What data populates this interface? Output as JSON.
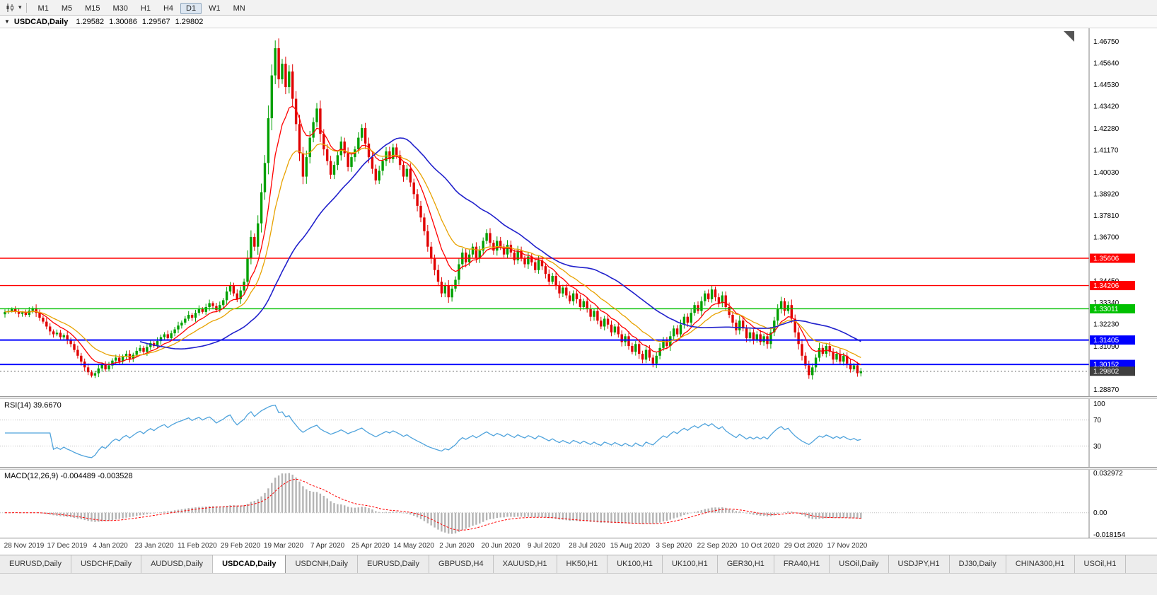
{
  "toolbar": {
    "timeframes": [
      "M1",
      "M5",
      "M15",
      "M30",
      "H1",
      "H4",
      "D1",
      "W1",
      "MN"
    ],
    "active_timeframe": "D1"
  },
  "chart_header": {
    "symbol": "USDCAD,Daily",
    "open": "1.29582",
    "high": "1.30086",
    "low": "1.29567",
    "close": "1.29802"
  },
  "chart_data": {
    "type": "candlestick",
    "title": "USDCAD,Daily",
    "quote": {
      "open": 1.29582,
      "high": 1.30086,
      "low": 1.29567,
      "close": 1.29802
    },
    "ylim": [
      1.2852,
      1.4742
    ],
    "y_ticks": [
      "1.46750",
      "1.45640",
      "1.44530",
      "1.43420",
      "1.42280",
      "1.41170",
      "1.40030",
      "1.38920",
      "1.37810",
      "1.36700",
      "1.35560",
      "1.34450",
      "1.33340",
      "1.32230",
      "1.31090",
      "1.29980",
      "1.28870"
    ],
    "x_labels": [
      "28 Nov 2019",
      "17 Dec 2019",
      "4 Jan 2020",
      "23 Jan 2020",
      "11 Feb 2020",
      "29 Feb 2020",
      "19 Mar 2020",
      "7 Apr 2020",
      "25 Apr 2020",
      "14 May 2020",
      "2 Jun 2020",
      "20 Jun 2020",
      "9 Jul 2020",
      "28 Jul 2020",
      "15 Aug 2020",
      "3 Sep 2020",
      "22 Sep 2020",
      "10 Oct 2020",
      "29 Oct 2020",
      "17 Nov 2020"
    ],
    "closes": [
      1.3285,
      1.329,
      1.33,
      1.3288,
      1.3275,
      1.3282,
      1.327,
      1.3292,
      1.3305,
      1.328,
      1.3255,
      1.3235,
      1.321,
      1.3185,
      1.317,
      1.3178,
      1.3155,
      1.3165,
      1.314,
      1.312,
      1.309,
      1.306,
      1.303,
      1.3,
      1.2975,
      1.2958,
      1.297,
      1.2995,
      1.3015,
      1.299,
      1.301,
      1.3035,
      1.305,
      1.303,
      1.3055,
      1.307,
      1.3045,
      1.3065,
      1.3085,
      1.31,
      1.308,
      1.3105,
      1.3125,
      1.311,
      1.3135,
      1.3155,
      1.317,
      1.315,
      1.3175,
      1.3195,
      1.3215,
      1.323,
      1.325,
      1.327,
      1.3255,
      1.328,
      1.33,
      1.3285,
      1.331,
      1.333,
      1.3315,
      1.3295,
      1.332,
      1.3345,
      1.339,
      1.342,
      1.338,
      1.335,
      1.3395,
      1.344,
      1.356,
      1.367,
      1.362,
      1.374,
      1.39,
      1.405,
      1.428,
      1.45,
      1.464,
      1.448,
      1.456,
      1.444,
      1.452,
      1.438,
      1.425,
      1.41,
      1.398,
      1.408,
      1.418,
      1.426,
      1.433,
      1.42,
      1.412,
      1.406,
      1.399,
      1.404,
      1.409,
      1.416,
      1.41,
      1.403,
      1.408,
      1.412,
      1.418,
      1.423,
      1.415,
      1.408,
      1.402,
      1.396,
      1.401,
      1.406,
      1.411,
      1.407,
      1.413,
      1.409,
      1.404,
      1.398,
      1.402,
      1.395,
      1.389,
      1.383,
      1.377,
      1.37,
      1.362,
      1.356,
      1.35,
      1.344,
      1.338,
      1.342,
      1.336,
      1.3405,
      1.345,
      1.353,
      1.359,
      1.354,
      1.358,
      1.362,
      1.356,
      1.36,
      1.365,
      1.369,
      1.364,
      1.36,
      1.365,
      1.362,
      1.358,
      1.363,
      1.359,
      1.355,
      1.36,
      1.356,
      1.353,
      1.357,
      1.354,
      1.35,
      1.355,
      1.352,
      1.348,
      1.344,
      1.347,
      1.342,
      1.338,
      1.341,
      1.337,
      1.334,
      1.338,
      1.335,
      1.331,
      1.334,
      1.33,
      1.326,
      1.329,
      1.324,
      1.321,
      1.325,
      1.322,
      1.318,
      1.321,
      1.317,
      1.313,
      1.316,
      1.311,
      1.308,
      1.312,
      1.307,
      1.304,
      1.309,
      1.305,
      1.302,
      1.306,
      1.31,
      1.314,
      1.311,
      1.316,
      1.32,
      1.317,
      1.322,
      1.326,
      1.323,
      1.328,
      1.332,
      1.329,
      1.334,
      1.338,
      1.335,
      1.34,
      1.336,
      1.333,
      1.337,
      1.331,
      1.327,
      1.323,
      1.319,
      1.324,
      1.32,
      1.315,
      1.318,
      1.314,
      1.317,
      1.313,
      1.316,
      1.312,
      1.318,
      1.324,
      1.33,
      1.334,
      1.329,
      1.332,
      1.325,
      1.318,
      1.312,
      1.306,
      1.301,
      1.296,
      1.3,
      1.305,
      1.31,
      1.307,
      1.311,
      1.308,
      1.304,
      1.307,
      1.303,
      1.306,
      1.302,
      1.299,
      1.301,
      1.297,
      1.29802
    ],
    "hlines": [
      {
        "price": 1.35606,
        "label": "1.35606",
        "color": "#ff0000"
      },
      {
        "price": 1.34206,
        "label": "1.34206",
        "color": "#ff0000"
      },
      {
        "price": 1.33011,
        "label": "1.33011",
        "color": "#00c000"
      },
      {
        "price": 1.31405,
        "label": "1.31405",
        "color": "#0000ff"
      },
      {
        "price": 1.30152,
        "label": "1.30152",
        "color": "#0000ff"
      }
    ],
    "last_price": {
      "price": 1.29802,
      "label": "1.29802",
      "color": "#3f3f3f"
    },
    "colors": {
      "bull": "#00a000",
      "bear": "#e00000",
      "ma_fast": "#ff0000",
      "ma_mid": "#e8a200",
      "ma_slow": "#2121cc",
      "rsi_line": "#4fa3dc",
      "macd_hist": "#b4b4b4",
      "macd_signal": "#ff0000"
    },
    "indicators": {
      "rsi": {
        "label": "RSI(14) 39.6670",
        "axis_labels": [
          "100",
          "70",
          "30"
        ],
        "levels": [
          70,
          30
        ],
        "range": [
          0,
          100
        ]
      },
      "macd": {
        "label": "MACD(12,26,9) -0.004489 -0.003528",
        "axis_labels": [
          "0.032972",
          "0.00",
          "-0.018154"
        ],
        "range": [
          -0.019,
          0.034
        ]
      }
    }
  },
  "bottom_tabs": {
    "active_index": 3,
    "tabs": [
      "EURUSD,Daily",
      "USDCHF,Daily",
      "AUDUSD,Daily",
      "USDCAD,Daily",
      "USDCNH,Daily",
      "EURUSD,Daily",
      "GBPUSD,H4",
      "XAUUSD,H1",
      "HK50,H1",
      "UK100,H1",
      "UK100,H1",
      "GER30,H1",
      "FRA40,H1",
      "USOil,Daily",
      "USDJPY,H1",
      "DJ30,Daily",
      "CHINA300,H1",
      "USOil,H1"
    ]
  }
}
